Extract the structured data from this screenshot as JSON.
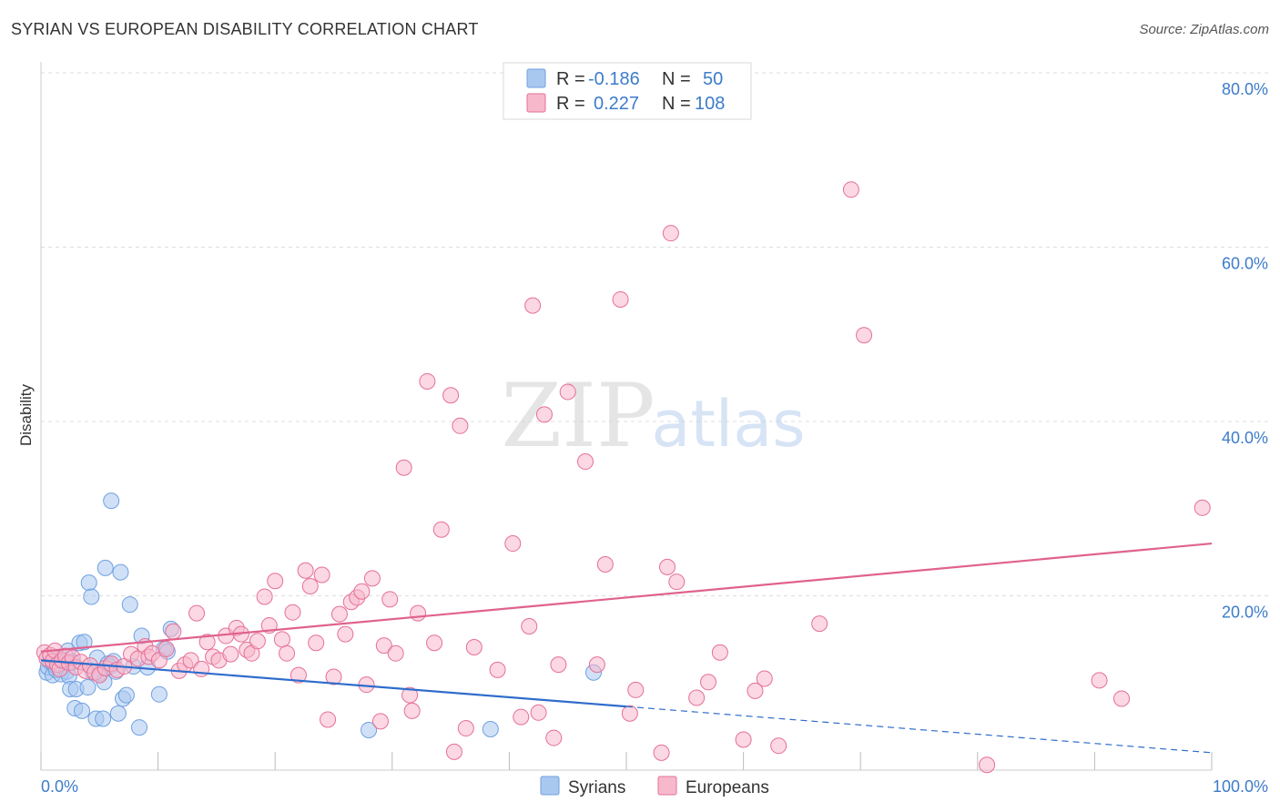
{
  "header": {
    "title": "SYRIAN VS EUROPEAN DISABILITY CORRELATION CHART",
    "source": "Source: ZipAtlas.com"
  },
  "watermark": {
    "zip": "ZIP",
    "atlas": "atlas"
  },
  "legend": {
    "rows": [
      {
        "r_label": "R =",
        "r_value": "-0.186",
        "n_label": "N =",
        "n_value": "50",
        "color": "#a9c8f0"
      },
      {
        "r_label": "R =",
        "r_value": "0.227",
        "n_label": "N =",
        "n_value": "108",
        "color": "#f7b8cc"
      }
    ]
  },
  "bottom_legend": [
    {
      "label": "Syrians",
      "color": "#a9c8f0"
    },
    {
      "label": "Europeans",
      "color": "#f7b8cc"
    }
  ],
  "chart_data": {
    "type": "scatter",
    "title": "SYRIAN VS EUROPEAN DISABILITY CORRELATION CHART",
    "xlabel": "",
    "ylabel": "Disability",
    "xlim": [
      0,
      100
    ],
    "ylim": [
      0,
      80
    ],
    "x_tick_labels": [
      "0.0%",
      "100.0%"
    ],
    "y_tick_labels": [
      "20.0%",
      "40.0%",
      "60.0%",
      "80.0%"
    ],
    "y_ticks": [
      20,
      40,
      60,
      80
    ],
    "grid": "horizontal dashed",
    "legend_position": "top-center",
    "series": [
      {
        "name": "Syrians",
        "color": "#6fa0e0",
        "fill": "#a9c8f0",
        "trend": {
          "x0": 0,
          "y0": 12.6,
          "x1": 100,
          "y1": 2.0,
          "solid_until": 50
        },
        "points": [
          [
            0.5,
            11.2
          ],
          [
            0.6,
            11.8
          ],
          [
            0.8,
            12.4
          ],
          [
            1.0,
            10.9
          ],
          [
            1.1,
            12.1
          ],
          [
            1.3,
            11.5
          ],
          [
            1.5,
            12.8
          ],
          [
            1.7,
            11.0
          ],
          [
            2.0,
            12.6
          ],
          [
            2.2,
            11.3
          ],
          [
            2.3,
            13.7
          ],
          [
            2.4,
            10.8
          ],
          [
            2.5,
            9.3
          ],
          [
            2.7,
            12.4
          ],
          [
            2.9,
            7.1
          ],
          [
            3.0,
            9.3
          ],
          [
            3.3,
            14.6
          ],
          [
            3.5,
            6.8
          ],
          [
            3.7,
            14.7
          ],
          [
            4.0,
            9.5
          ],
          [
            4.1,
            21.5
          ],
          [
            4.3,
            19.9
          ],
          [
            4.4,
            11.3
          ],
          [
            4.7,
            5.9
          ],
          [
            4.8,
            12.9
          ],
          [
            5.0,
            11.1
          ],
          [
            5.3,
            5.9
          ],
          [
            5.4,
            10.1
          ],
          [
            5.5,
            23.2
          ],
          [
            5.7,
            12.2
          ],
          [
            5.9,
            11.9
          ],
          [
            6.0,
            30.9
          ],
          [
            6.2,
            12.5
          ],
          [
            6.4,
            11.3
          ],
          [
            6.6,
            6.5
          ],
          [
            6.8,
            22.7
          ],
          [
            7.0,
            8.2
          ],
          [
            7.3,
            8.6
          ],
          [
            7.6,
            19.0
          ],
          [
            7.9,
            11.9
          ],
          [
            8.4,
            4.9
          ],
          [
            8.6,
            15.4
          ],
          [
            9.1,
            11.8
          ],
          [
            10.1,
            8.7
          ],
          [
            10.5,
            13.9
          ],
          [
            10.8,
            13.6
          ],
          [
            11.1,
            16.2
          ],
          [
            28.0,
            4.6
          ],
          [
            38.4,
            4.7
          ],
          [
            47.2,
            11.2
          ]
        ]
      },
      {
        "name": "Europeans",
        "color": "#e57096",
        "fill": "#f7b8cc",
        "trend": {
          "x0": 0,
          "y0": 13.6,
          "x1": 100,
          "y1": 26.0,
          "solid_until": 100
        },
        "points": [
          [
            0.3,
            13.5
          ],
          [
            0.5,
            12.8
          ],
          [
            0.8,
            13.2
          ],
          [
            1.0,
            12.5
          ],
          [
            1.2,
            13.7
          ],
          [
            1.4,
            12.1
          ],
          [
            1.6,
            11.6
          ],
          [
            1.8,
            12.6
          ],
          [
            2.1,
            13.1
          ],
          [
            2.4,
            12.3
          ],
          [
            2.7,
            12.9
          ],
          [
            3.0,
            11.8
          ],
          [
            3.4,
            12.4
          ],
          [
            3.8,
            11.4
          ],
          [
            4.2,
            12.0
          ],
          [
            4.6,
            11.2
          ],
          [
            5.0,
            10.9
          ],
          [
            5.5,
            11.7
          ],
          [
            6.0,
            12.2
          ],
          [
            6.5,
            11.5
          ],
          [
            7.1,
            11.9
          ],
          [
            7.7,
            13.3
          ],
          [
            8.3,
            12.8
          ],
          [
            8.9,
            14.2
          ],
          [
            9.2,
            13.0
          ],
          [
            9.5,
            13.4
          ],
          [
            10.1,
            12.6
          ],
          [
            10.7,
            13.9
          ],
          [
            11.3,
            15.9
          ],
          [
            11.8,
            11.4
          ],
          [
            12.3,
            12.1
          ],
          [
            12.8,
            12.6
          ],
          [
            13.3,
            18.0
          ],
          [
            13.7,
            11.6
          ],
          [
            14.2,
            14.7
          ],
          [
            14.7,
            13.0
          ],
          [
            15.2,
            12.6
          ],
          [
            15.8,
            15.4
          ],
          [
            16.2,
            13.3
          ],
          [
            16.7,
            16.3
          ],
          [
            17.1,
            15.6
          ],
          [
            17.6,
            13.8
          ],
          [
            18.0,
            13.4
          ],
          [
            18.5,
            14.8
          ],
          [
            19.1,
            19.9
          ],
          [
            19.5,
            16.6
          ],
          [
            20.0,
            21.7
          ],
          [
            20.6,
            15.0
          ],
          [
            21.0,
            13.4
          ],
          [
            21.5,
            18.1
          ],
          [
            22.0,
            10.9
          ],
          [
            22.6,
            22.9
          ],
          [
            23.0,
            21.1
          ],
          [
            23.5,
            14.6
          ],
          [
            24.0,
            22.4
          ],
          [
            24.5,
            5.8
          ],
          [
            25.0,
            10.7
          ],
          [
            25.5,
            17.9
          ],
          [
            26.0,
            15.6
          ],
          [
            26.5,
            19.3
          ],
          [
            27.0,
            19.8
          ],
          [
            27.4,
            20.5
          ],
          [
            27.8,
            9.8
          ],
          [
            28.3,
            22.0
          ],
          [
            29.0,
            5.6
          ],
          [
            29.3,
            14.3
          ],
          [
            29.8,
            19.6
          ],
          [
            30.3,
            13.4
          ],
          [
            31.0,
            34.7
          ],
          [
            31.5,
            8.6
          ],
          [
            31.7,
            6.8
          ],
          [
            32.2,
            18.0
          ],
          [
            33.0,
            44.6
          ],
          [
            33.6,
            14.6
          ],
          [
            34.2,
            27.6
          ],
          [
            35.0,
            43.0
          ],
          [
            35.3,
            2.1
          ],
          [
            35.8,
            39.5
          ],
          [
            36.3,
            4.8
          ],
          [
            37.0,
            14.1
          ],
          [
            39.0,
            11.5
          ],
          [
            40.3,
            26.0
          ],
          [
            41.0,
            6.1
          ],
          [
            41.7,
            16.5
          ],
          [
            42.0,
            53.3
          ],
          [
            42.5,
            6.6
          ],
          [
            43.0,
            40.8
          ],
          [
            43.8,
            3.7
          ],
          [
            44.2,
            12.1
          ],
          [
            45.0,
            43.4
          ],
          [
            46.5,
            35.4
          ],
          [
            47.5,
            12.1
          ],
          [
            48.2,
            23.6
          ],
          [
            49.5,
            54.0
          ],
          [
            50.3,
            6.5
          ],
          [
            50.8,
            9.2
          ],
          [
            53.0,
            2.0
          ],
          [
            53.5,
            23.3
          ],
          [
            53.8,
            61.6
          ],
          [
            54.3,
            21.6
          ],
          [
            56.0,
            8.3
          ],
          [
            57.0,
            10.1
          ],
          [
            58.0,
            13.5
          ],
          [
            60.0,
            3.5
          ],
          [
            61.0,
            9.1
          ],
          [
            61.8,
            10.5
          ],
          [
            63.0,
            2.8
          ],
          [
            66.5,
            16.8
          ]
        ],
        "extra_points": [
          [
            69.2,
            66.6
          ],
          [
            70.3,
            49.9
          ],
          [
            80.8,
            0.6
          ],
          [
            90.4,
            10.3
          ],
          [
            92.3,
            8.2
          ],
          [
            99.2,
            30.1
          ]
        ]
      }
    ]
  }
}
